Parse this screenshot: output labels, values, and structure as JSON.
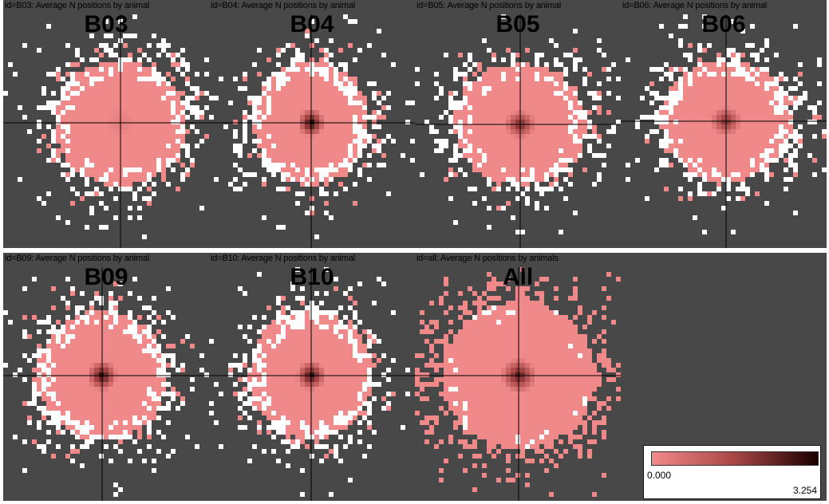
{
  "chart_data": [
    {
      "type": "heatmap",
      "header": "id=B03: Average N positions by animal",
      "title": "B03"
    },
    {
      "type": "heatmap",
      "header": "id=B04: Average N positions by animal",
      "title": "B04"
    },
    {
      "type": "heatmap",
      "header": "id=B05: Average N positions by animal",
      "title": "B05"
    },
    {
      "type": "heatmap",
      "header": "id=B06: Average N positions by animal",
      "title": "B06"
    },
    {
      "type": "heatmap",
      "header": "id=B09: Average N positions by animal",
      "title": "B09"
    },
    {
      "type": "heatmap",
      "header": "id=B10: Average N positions by animal",
      "title": "B10"
    },
    {
      "type": "heatmap",
      "header": "id=all: Average N positions by animals",
      "title": "All"
    }
  ],
  "legend": {
    "min_label": "0.000",
    "max_label": "3.254",
    "min_value": 0.0,
    "max_value": 3.254,
    "colors": [
      "#f28a8a",
      "#a84646",
      "#1a0000"
    ]
  },
  "colors": {
    "background": "#484848",
    "heat_low": "#f08a8a",
    "heat_high": "#1a0000",
    "empty_bins": "#ffffff",
    "crosshair": "#000000"
  }
}
